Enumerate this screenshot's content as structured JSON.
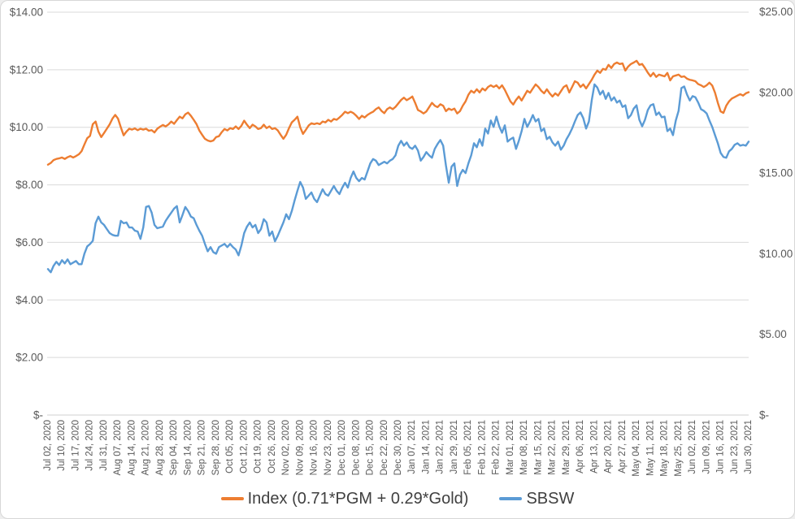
{
  "chart_data": {
    "type": "line",
    "title": "",
    "grid": "horizontal",
    "legend_position": "bottom",
    "colors": {
      "index_series": "#ED7D31",
      "sbsw_series": "#5B9BD5",
      "gridline": "#D9D9D9",
      "axis_text": "#595959",
      "legend_text": "#404040"
    },
    "axes": {
      "left": {
        "range": [
          0,
          14
        ],
        "tick_step": 2,
        "tick_labels": [
          "$14.00",
          "$12.00",
          "$10.00",
          "$8.00",
          "$6.00",
          "$4.00",
          "$2.00",
          "$-"
        ]
      },
      "right": {
        "range": [
          0,
          25
        ],
        "tick_step": 5,
        "tick_labels": [
          "$25.00",
          "$20.00",
          "$15.00",
          "$10.00",
          "$5.00",
          "$-"
        ]
      }
    },
    "x_axis": {
      "unit": "trading days (daily data), labels every 5 trading days",
      "total_days": 250,
      "tick_step_days": 5,
      "tick_labels": [
        "Jul 02, 2020",
        "Jul 10, 2020",
        "Jul 17, 2020",
        "Jul 24, 2020",
        "Jul 31, 2020",
        "Aug 07, 2020",
        "Aug 14, 2020",
        "Aug 21, 2020",
        "Aug 28, 2020",
        "Sep 04, 2020",
        "Sep 14, 2020",
        "Sep 21, 2020",
        "Sep 28, 2020",
        "Oct 05, 2020",
        "Oct 12, 2020",
        "Oct 19, 2020",
        "Oct 26, 2020",
        "Nov 02, 2020",
        "Nov 09, 2020",
        "Nov 16, 2020",
        "Nov 23, 2020",
        "Dec 01, 2020",
        "Dec 08, 2020",
        "Dec 15, 2020",
        "Dec 22, 2020",
        "Dec 30, 2020",
        "Jan 07, 2021",
        "Jan 14, 2021",
        "Jan 22, 2021",
        "Jan 29, 2021",
        "Feb 05, 2021",
        "Feb 12, 2021",
        "Feb 22, 2021",
        "Mar 01, 2021",
        "Mar 08, 2021",
        "Mar 15, 2021",
        "Mar 22, 2021",
        "Mar 29, 2021",
        "Apr 06, 2021",
        "Apr 13, 2021",
        "Apr 20, 2021",
        "Apr 27, 2021",
        "May 04, 2021",
        "May 11, 2021",
        "May 18, 2021",
        "May 25, 2021",
        "Jun 02, 2021",
        "Jun 09, 2021",
        "Jun 16, 2021",
        "Jun 23, 2021",
        "Jun 30, 2021"
      ]
    },
    "series": [
      {
        "name": "Index (0.71*PGM + 0.29*Gold)",
        "axis": "left",
        "color": "#ED7D31",
        "values": [
          8.7,
          8.76,
          8.86,
          8.9,
          8.92,
          8.95,
          8.9,
          8.96,
          9.0,
          8.95,
          9.0,
          9.06,
          9.17,
          9.4,
          9.62,
          9.7,
          10.11,
          10.2,
          9.85,
          9.66,
          9.8,
          9.95,
          10.1,
          10.3,
          10.43,
          10.3,
          10.0,
          9.72,
          9.85,
          9.95,
          9.92,
          9.96,
          9.9,
          9.95,
          9.92,
          9.95,
          9.88,
          9.9,
          9.82,
          9.95,
          10.02,
          10.08,
          10.03,
          10.1,
          10.2,
          10.12,
          10.25,
          10.37,
          10.31,
          10.45,
          10.51,
          10.4,
          10.26,
          10.11,
          9.89,
          9.74,
          9.6,
          9.54,
          9.51,
          9.54,
          9.66,
          9.69,
          9.83,
          9.94,
          9.89,
          9.97,
          9.94,
          10.03,
          9.94,
          10.05,
          10.23,
          10.09,
          9.97,
          10.09,
          10.03,
          9.94,
          9.97,
          10.09,
          9.97,
          10.03,
          9.94,
          9.97,
          9.89,
          9.74,
          9.6,
          9.74,
          9.97,
          10.17,
          10.26,
          10.37,
          10.0,
          9.77,
          9.91,
          10.06,
          10.14,
          10.11,
          10.14,
          10.11,
          10.2,
          10.17,
          10.26,
          10.2,
          10.29,
          10.26,
          10.34,
          10.43,
          10.54,
          10.49,
          10.54,
          10.49,
          10.4,
          10.29,
          10.4,
          10.34,
          10.43,
          10.49,
          10.54,
          10.63,
          10.69,
          10.57,
          10.49,
          10.63,
          10.69,
          10.63,
          10.71,
          10.83,
          10.95,
          11.03,
          10.94,
          11.0,
          11.07,
          10.85,
          10.6,
          10.55,
          10.48,
          10.55,
          10.7,
          10.85,
          10.75,
          10.7,
          10.8,
          10.75,
          10.56,
          10.65,
          10.6,
          10.65,
          10.48,
          10.56,
          10.75,
          10.9,
          11.13,
          11.27,
          11.2,
          11.32,
          11.21,
          11.35,
          11.28,
          11.4,
          11.46,
          11.4,
          11.46,
          11.35,
          11.46,
          11.3,
          11.1,
          10.9,
          10.79,
          10.95,
          11.07,
          10.93,
          11.1,
          11.27,
          11.2,
          11.35,
          11.49,
          11.4,
          11.27,
          11.18,
          11.32,
          11.18,
          11.07,
          11.18,
          11.1,
          11.25,
          11.4,
          11.46,
          11.21,
          11.4,
          11.6,
          11.55,
          11.4,
          11.49,
          11.35,
          11.5,
          11.65,
          11.83,
          11.97,
          11.89,
          12.03,
          12.0,
          12.17,
          12.06,
          12.2,
          12.25,
          12.2,
          12.22,
          11.97,
          12.11,
          12.2,
          12.25,
          12.31,
          12.17,
          12.2,
          12.06,
          11.9,
          11.77,
          11.89,
          11.75,
          11.83,
          11.8,
          11.77,
          11.89,
          11.63,
          11.77,
          11.8,
          11.83,
          11.75,
          11.77,
          11.69,
          11.65,
          11.63,
          11.6,
          11.5,
          11.46,
          11.4,
          11.46,
          11.55,
          11.45,
          11.2,
          10.85,
          10.55,
          10.5,
          10.75,
          10.9,
          11.0,
          11.05,
          11.1,
          11.15,
          11.1,
          11.18,
          11.22
        ]
      },
      {
        "name": "SBSW",
        "axis": "right",
        "color": "#5B9BD5",
        "values": [
          9.05,
          8.85,
          9.25,
          9.5,
          9.3,
          9.6,
          9.4,
          9.65,
          9.35,
          9.45,
          9.55,
          9.35,
          9.35,
          10.0,
          10.45,
          10.6,
          10.8,
          11.9,
          12.3,
          11.94,
          11.79,
          11.53,
          11.28,
          11.17,
          11.12,
          11.12,
          12.04,
          11.89,
          11.94,
          11.63,
          11.63,
          11.43,
          11.38,
          10.92,
          11.63,
          12.9,
          12.96,
          12.55,
          11.79,
          11.58,
          11.63,
          11.68,
          12.04,
          12.3,
          12.55,
          12.8,
          12.95,
          11.94,
          12.4,
          12.9,
          12.65,
          12.3,
          12.2,
          11.79,
          11.43,
          11.12,
          10.61,
          10.15,
          10.41,
          10.1,
          10.0,
          10.41,
          10.51,
          10.61,
          10.41,
          10.61,
          10.41,
          10.26,
          9.9,
          10.5,
          11.28,
          11.68,
          11.94,
          11.63,
          11.79,
          11.28,
          11.53,
          12.14,
          11.94,
          11.12,
          11.38,
          10.77,
          11.12,
          11.53,
          11.94,
          12.45,
          12.14,
          12.65,
          13.3,
          13.9,
          14.45,
          14.1,
          13.4,
          13.6,
          13.8,
          13.4,
          13.2,
          13.6,
          14.0,
          13.7,
          13.6,
          13.9,
          14.2,
          13.9,
          13.7,
          14.1,
          14.4,
          14.1,
          14.7,
          15.1,
          14.7,
          14.5,
          14.7,
          14.6,
          15.1,
          15.6,
          15.87,
          15.77,
          15.5,
          15.6,
          15.7,
          15.6,
          15.77,
          15.87,
          16.1,
          16.7,
          17.0,
          16.7,
          16.9,
          16.6,
          16.5,
          16.7,
          16.4,
          15.77,
          16.0,
          16.3,
          16.1,
          15.95,
          16.5,
          16.8,
          17.05,
          16.7,
          15.46,
          14.4,
          15.4,
          15.6,
          14.2,
          14.9,
          15.2,
          15.0,
          15.6,
          16.1,
          16.85,
          16.6,
          17.1,
          16.7,
          17.76,
          17.45,
          18.26,
          17.86,
          18.5,
          17.9,
          17.5,
          17.96,
          16.95,
          17.1,
          17.2,
          16.5,
          17.0,
          17.6,
          18.36,
          17.86,
          18.2,
          18.6,
          18.2,
          18.36,
          17.6,
          17.76,
          17.1,
          17.25,
          16.9,
          16.7,
          16.95,
          16.45,
          16.7,
          17.1,
          17.4,
          17.76,
          18.2,
          18.6,
          18.76,
          18.4,
          17.76,
          18.2,
          19.5,
          20.5,
          20.3,
          19.87,
          20.1,
          19.6,
          19.97,
          19.5,
          19.7,
          19.37,
          19.5,
          19.1,
          19.2,
          18.4,
          18.6,
          19.0,
          19.2,
          18.3,
          17.9,
          18.3,
          18.9,
          19.2,
          19.27,
          18.6,
          18.76,
          18.46,
          18.5,
          17.6,
          17.76,
          17.35,
          18.26,
          18.86,
          20.27,
          20.37,
          19.87,
          19.5,
          19.77,
          19.7,
          19.37,
          18.96,
          18.86,
          18.7,
          18.26,
          17.86,
          17.35,
          16.85,
          16.25,
          16.0,
          15.95,
          16.35,
          16.5,
          16.75,
          16.85,
          16.7,
          16.75,
          16.7,
          16.95
        ]
      }
    ]
  },
  "legend": {
    "items": [
      {
        "label": "Index (0.71*PGM + 0.29*Gold)"
      },
      {
        "label": "SBSW"
      }
    ]
  }
}
